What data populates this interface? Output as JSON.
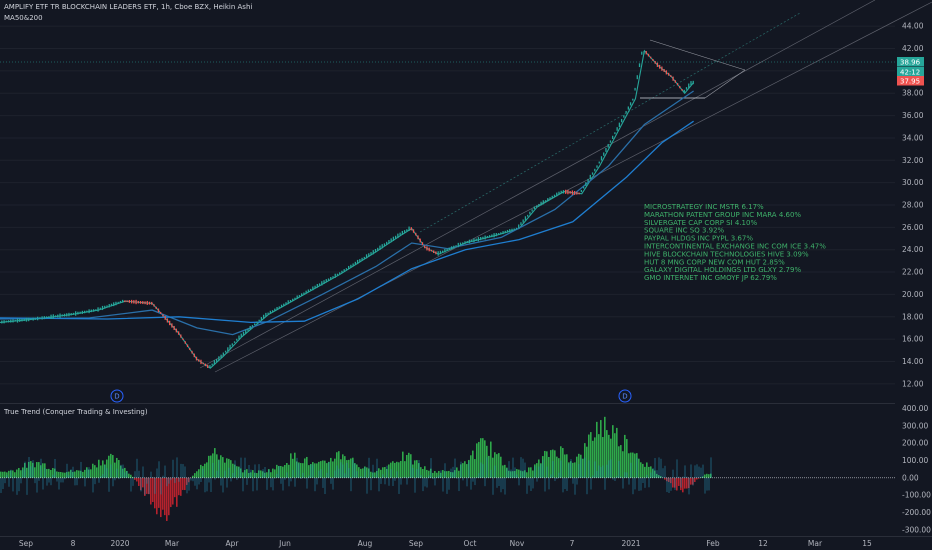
{
  "header": {
    "title": "AMPLIFY ETF TR BLOCKCHAIN LEADERS ETF, 1h, Cboe BZX, Heikin Ashi",
    "indicator": "MA50&200"
  },
  "oscillator": {
    "title": "True Trend (Conquer Trading & Investing)"
  },
  "holdings": [
    "MICROSTRATEGY INC MSTR 6.17%",
    "MARATHON PATENT GROUP INC MARA 4.60%",
    "SILVERGATE CAP CORP SI 4.10%",
    "SQUARE INC SQ 3.92%",
    "PAYPAL HLDGS INC PYPL 3.67%",
    "INTERCONTINENTAL EXCHANGE INC COM ICE 3.47%",
    "HIVE BLOCKCHAIN TECHNOLOGIES HIVE 3.09%",
    "HUT 8 MNG CORP NEW COM HUT 2.85%",
    "GALAXY DIGITAL HOLDINGS LTD GLXY 2.79%",
    "GMO INTERNET INC GMOYF JP 62.79%"
  ],
  "price_badges": [
    {
      "text": "38.96",
      "color": "#26a69a"
    },
    {
      "text": "42:12",
      "color": "#26a69a"
    },
    {
      "text": "37.95",
      "color": "#ef5350"
    }
  ],
  "dividend_markers": [
    "D",
    "D"
  ],
  "chart_data": {
    "type": "line",
    "title": "AMPLIFY ETF TR BLOCKCHAIN LEADERS ETF, 1h, Cboe BZX, Heikin Ashi",
    "x_ticks": [
      "Sep",
      "8",
      "2020",
      "Mar",
      "Apr",
      "Jun",
      "Aug",
      "Sep",
      "Oct",
      "Nov",
      "7",
      "2021",
      "Feb",
      "12",
      "Mar",
      "15"
    ],
    "y_ticks": [
      "44.00",
      "42.00",
      "40.00",
      "38.00",
      "36.00",
      "34.00",
      "32.00",
      "30.00",
      "28.00",
      "26.00",
      "24.00",
      "22.00",
      "20.00",
      "18.00",
      "16.00",
      "14.00",
      "12.00"
    ],
    "ylim": [
      11,
      45
    ],
    "osc_ticks": [
      "400.00",
      "300.00",
      "200.00",
      "100.00",
      "0.00",
      "-100.00",
      "-200.00",
      "-300.00"
    ],
    "osc_ylim": [
      -330,
      420
    ],
    "series": [
      {
        "name": "Price",
        "color": "#26a69a",
        "points": [
          [
            0,
            17.5
          ],
          [
            0.04,
            17.8
          ],
          [
            0.08,
            18.2
          ],
          [
            0.11,
            18.6
          ],
          [
            0.14,
            19.4
          ],
          [
            0.17,
            19.2
          ],
          [
            0.2,
            16.5
          ],
          [
            0.22,
            14.2
          ],
          [
            0.235,
            13.4
          ],
          [
            0.25,
            14.5
          ],
          [
            0.27,
            16.2
          ],
          [
            0.3,
            18.2
          ],
          [
            0.34,
            20.0
          ],
          [
            0.38,
            21.8
          ],
          [
            0.42,
            23.8
          ],
          [
            0.45,
            25.4
          ],
          [
            0.46,
            25.9
          ],
          [
            0.475,
            24.2
          ],
          [
            0.49,
            23.6
          ],
          [
            0.52,
            24.6
          ],
          [
            0.555,
            25.3
          ],
          [
            0.58,
            25.9
          ],
          [
            0.6,
            27.8
          ],
          [
            0.63,
            29.2
          ],
          [
            0.65,
            29.0
          ],
          [
            0.67,
            31.5
          ],
          [
            0.69,
            34.5
          ],
          [
            0.71,
            37.5
          ],
          [
            0.72,
            41.8
          ],
          [
            0.735,
            40.5
          ],
          [
            0.75,
            39.5
          ],
          [
            0.765,
            38.0
          ],
          [
            0.775,
            38.96
          ]
        ]
      },
      {
        "name": "MA50",
        "color": "#2a6fa8",
        "points": [
          [
            0,
            17.8
          ],
          [
            0.1,
            17.9
          ],
          [
            0.17,
            18.6
          ],
          [
            0.22,
            17.0
          ],
          [
            0.26,
            16.4
          ],
          [
            0.3,
            17.6
          ],
          [
            0.36,
            20.0
          ],
          [
            0.42,
            22.5
          ],
          [
            0.46,
            24.6
          ],
          [
            0.5,
            24.1
          ],
          [
            0.56,
            25.1
          ],
          [
            0.62,
            27.6
          ],
          [
            0.68,
            31.5
          ],
          [
            0.72,
            35.2
          ],
          [
            0.775,
            38.2
          ]
        ]
      },
      {
        "name": "MA200",
        "color": "#1f7ed0",
        "points": [
          [
            0,
            17.9
          ],
          [
            0.12,
            17.8
          ],
          [
            0.2,
            18.0
          ],
          [
            0.28,
            17.5
          ],
          [
            0.34,
            17.6
          ],
          [
            0.4,
            19.6
          ],
          [
            0.46,
            22.3
          ],
          [
            0.52,
            24.0
          ],
          [
            0.58,
            24.9
          ],
          [
            0.64,
            26.5
          ],
          [
            0.7,
            30.5
          ],
          [
            0.74,
            33.6
          ],
          [
            0.775,
            35.5
          ]
        ]
      }
    ]
  }
}
